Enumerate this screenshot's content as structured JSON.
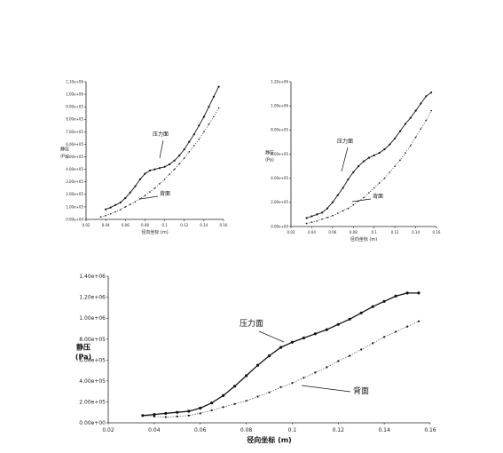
{
  "chart_data": [
    {
      "type": "line",
      "title": "",
      "xlabel": "径向坐标 (m)",
      "ylabel": "静压",
      "yunit": "(Pa)",
      "xlim": [
        0.02,
        0.16
      ],
      "ylim": [
        0.0,
        1100000
      ],
      "xticks": [
        "0.02",
        "0.04",
        "0.06",
        "0.08",
        "0.1",
        "0.12",
        "0.14",
        "0.16"
      ],
      "yticks": [
        "0.00e+00",
        "1.00e+05",
        "2.00e+05",
        "3.00e+05",
        "4.00e+05",
        "5.00e+05",
        "6.00e+05",
        "7.00e+05",
        "8.00e+05",
        "9.00e+05",
        "1.00e+06",
        "1.10e+06"
      ],
      "annotations": [
        "压力面",
        "背面"
      ],
      "series": [
        {
          "style": "solid",
          "x": [
            0.04,
            0.045,
            0.05,
            0.055,
            0.06,
            0.065,
            0.07,
            0.075,
            0.08,
            0.085,
            0.09,
            0.095,
            0.1,
            0.105,
            0.11,
            0.115,
            0.12,
            0.125,
            0.13,
            0.135,
            0.14,
            0.145,
            0.15,
            0.155
          ],
          "y": [
            80000,
            95000,
            115000,
            135000,
            170000,
            215000,
            265000,
            320000,
            365000,
            390000,
            400000,
            410000,
            420000,
            440000,
            470000,
            510000,
            560000,
            620000,
            680000,
            750000,
            820000,
            900000,
            980000,
            1060000
          ]
        },
        {
          "style": "dotted",
          "x": [
            0.035,
            0.04,
            0.045,
            0.05,
            0.055,
            0.06,
            0.065,
            0.07,
            0.075,
            0.08,
            0.085,
            0.09,
            0.095,
            0.1,
            0.105,
            0.11,
            0.115,
            0.12,
            0.125,
            0.13,
            0.135,
            0.14,
            0.145,
            0.15,
            0.155
          ],
          "y": [
            20000,
            30000,
            45000,
            60000,
            78000,
            100000,
            120000,
            140000,
            165000,
            190000,
            220000,
            250000,
            285000,
            320000,
            360000,
            400000,
            445000,
            490000,
            540000,
            590000,
            640000,
            700000,
            760000,
            820000,
            890000
          ]
        }
      ]
    },
    {
      "type": "line",
      "title": "",
      "xlabel": "径向坐标 (m)",
      "ylabel": "静压",
      "yunit": "(Pa)",
      "xlim": [
        0.02,
        0.16
      ],
      "ylim": [
        0.0,
        1200000
      ],
      "xticks": [
        "0.02",
        "0.04",
        "0.06",
        "0.08",
        "0.1",
        "0.12",
        "0.14",
        "0.16"
      ],
      "yticks": [
        "0.00e+00",
        "2.00e+05",
        "4.00e+05",
        "6.00e+05",
        "8.00e+05",
        "1.00e+06",
        "1.20e+06"
      ],
      "annotations": [
        "压力面",
        "背面"
      ],
      "series": [
        {
          "style": "solid",
          "x": [
            0.035,
            0.04,
            0.045,
            0.05,
            0.055,
            0.06,
            0.065,
            0.07,
            0.075,
            0.08,
            0.085,
            0.09,
            0.095,
            0.1,
            0.105,
            0.11,
            0.115,
            0.12,
            0.125,
            0.13,
            0.135,
            0.14,
            0.145,
            0.15,
            0.155
          ],
          "y": [
            70000,
            85000,
            100000,
            115000,
            150000,
            200000,
            260000,
            320000,
            390000,
            450000,
            500000,
            540000,
            570000,
            590000,
            610000,
            640000,
            680000,
            730000,
            790000,
            850000,
            900000,
            960000,
            1020000,
            1080000,
            1110000
          ]
        },
        {
          "style": "dotted",
          "x": [
            0.035,
            0.04,
            0.045,
            0.05,
            0.055,
            0.06,
            0.065,
            0.07,
            0.075,
            0.08,
            0.085,
            0.09,
            0.095,
            0.1,
            0.105,
            0.11,
            0.115,
            0.12,
            0.125,
            0.13,
            0.135,
            0.14,
            0.145,
            0.15,
            0.155
          ],
          "y": [
            25000,
            35000,
            45000,
            60000,
            75000,
            90000,
            110000,
            130000,
            150000,
            180000,
            210000,
            240000,
            280000,
            320000,
            360000,
            400000,
            450000,
            500000,
            550000,
            610000,
            670000,
            740000,
            810000,
            880000,
            960000
          ]
        }
      ]
    },
    {
      "type": "line",
      "title": "",
      "xlabel": "径向坐标 (m)",
      "ylabel": "静压",
      "yunit": "(Pa)",
      "xlim": [
        0.02,
        0.16
      ],
      "ylim": [
        0.0,
        1400000
      ],
      "xticks": [
        "0.02",
        "0.04",
        "0.06",
        "0.08",
        "0.1",
        "0.12",
        "0.14",
        "0.16"
      ],
      "yticks": [
        "0.00e+00",
        "2.00e+05",
        "4.00e+05",
        "6.00e+05",
        "8.00e+05",
        "1.00e+06",
        "1.20e+06",
        "1.40e+06"
      ],
      "annotations": [
        "压力面",
        "背面"
      ],
      "series": [
        {
          "style": "solid",
          "x": [
            0.035,
            0.04,
            0.045,
            0.05,
            0.055,
            0.06,
            0.065,
            0.07,
            0.075,
            0.08,
            0.085,
            0.09,
            0.095,
            0.1,
            0.105,
            0.11,
            0.115,
            0.12,
            0.125,
            0.13,
            0.135,
            0.14,
            0.145,
            0.15,
            0.155
          ],
          "y": [
            70000,
            80000,
            90000,
            100000,
            110000,
            140000,
            190000,
            260000,
            350000,
            450000,
            550000,
            640000,
            720000,
            770000,
            810000,
            850000,
            890000,
            940000,
            990000,
            1050000,
            1110000,
            1160000,
            1210000,
            1240000,
            1240000
          ]
        },
        {
          "style": "dotted",
          "x": [
            0.035,
            0.04,
            0.045,
            0.05,
            0.055,
            0.06,
            0.065,
            0.07,
            0.075,
            0.08,
            0.085,
            0.09,
            0.095,
            0.1,
            0.105,
            0.11,
            0.115,
            0.12,
            0.125,
            0.13,
            0.135,
            0.14,
            0.145,
            0.15,
            0.155
          ],
          "y": [
            70000,
            60000,
            55000,
            60000,
            70000,
            90000,
            120000,
            150000,
            180000,
            210000,
            250000,
            290000,
            340000,
            380000,
            430000,
            480000,
            530000,
            590000,
            640000,
            700000,
            760000,
            820000,
            870000,
            920000,
            970000
          ]
        }
      ]
    }
  ]
}
